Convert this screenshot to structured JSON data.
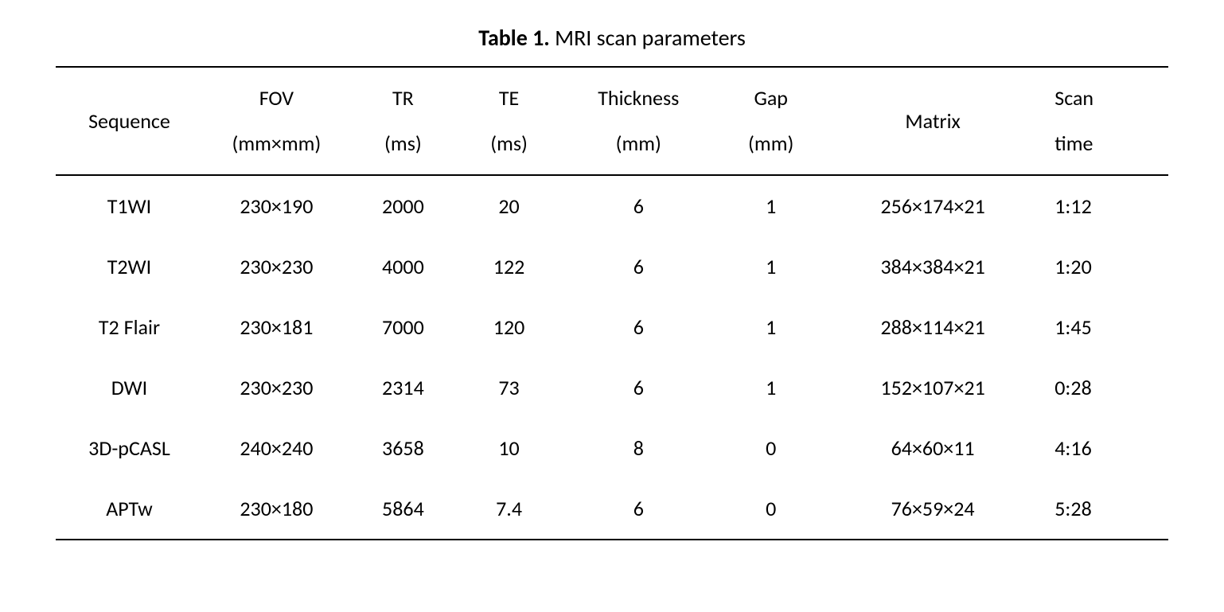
{
  "table": {
    "type": "table",
    "title_bold": "Table 1.",
    "title_normal": " MRI scan parameters",
    "title_fontsize": 28,
    "body_fontsize": 26,
    "background_color": "#ffffff",
    "text_color": "#000000",
    "border_color": "#000000",
    "border_width": 2,
    "columns": [
      {
        "key": "sequence",
        "line1": "Sequence",
        "line2": "",
        "width_pct": 12.5,
        "align": "center"
      },
      {
        "key": "fov",
        "line1": "FOV",
        "line2": "(mm×mm)",
        "width_pct": 12.5,
        "align": "center"
      },
      {
        "key": "tr",
        "line1": "TR",
        "line2": "(ms)",
        "width_pct": 9,
        "align": "center"
      },
      {
        "key": "te",
        "line1": "TE",
        "line2": "(ms)",
        "width_pct": 9,
        "align": "center"
      },
      {
        "key": "thickness",
        "line1": "Thickness",
        "line2": "(mm)",
        "width_pct": 13,
        "align": "center"
      },
      {
        "key": "gap",
        "line1": "Gap",
        "line2": "(mm)",
        "width_pct": 9.5,
        "align": "center"
      },
      {
        "key": "matrix",
        "line1": "Matrix",
        "line2": "",
        "width_pct": 18,
        "align": "center"
      },
      {
        "key": "scantime",
        "line1": "Scan",
        "line2": "time",
        "width_pct": 11,
        "align": "left"
      }
    ],
    "rows": [
      {
        "sequence": "T1WI",
        "fov": "230×190",
        "tr": "2000",
        "te": "20",
        "thickness": "6",
        "gap": "1",
        "matrix": "256×174×21",
        "scantime": "1:12"
      },
      {
        "sequence": "T2WI",
        "fov": "230×230",
        "tr": "4000",
        "te": "122",
        "thickness": "6",
        "gap": "1",
        "matrix": "384×384×21",
        "scantime": "1:20"
      },
      {
        "sequence": "T2 Flair",
        "fov": "230×181",
        "tr": "7000",
        "te": "120",
        "thickness": "6",
        "gap": "1",
        "matrix": "288×114×21",
        "scantime": "1:45"
      },
      {
        "sequence": "DWI",
        "fov": "230×230",
        "tr": "2314",
        "te": "73",
        "thickness": "6",
        "gap": "1",
        "matrix": "152×107×21",
        "scantime": "0:28"
      },
      {
        "sequence": "3D-pCASL",
        "fov": "240×240",
        "tr": "3658",
        "te": "10",
        "thickness": "8",
        "gap": "0",
        "matrix": "64×60×11",
        "scantime": "4:16"
      },
      {
        "sequence": "APTw",
        "fov": "230×180",
        "tr": "5864",
        "te": "7.4",
        "thickness": "6",
        "gap": "0",
        "matrix": "76×59×24",
        "scantime": "5:28"
      }
    ]
  }
}
